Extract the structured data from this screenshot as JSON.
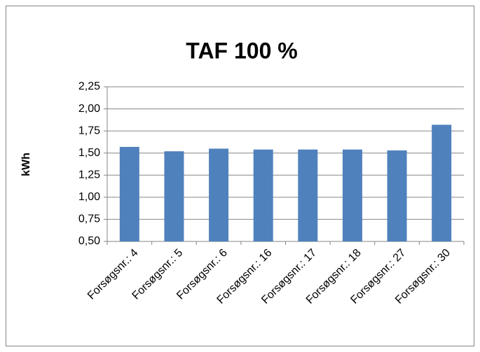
{
  "chart_data": {
    "type": "bar",
    "title": "TAF 100 %",
    "y_label": "kWh",
    "categories": [
      "Forsøgsnr.: 4",
      "Forsøgsnr.: 5",
      "Forsøgsnr.: 6",
      "Forsøgsnr.: 16",
      "Forsøgsnr.: 17",
      "Forsøgsnr.: 18",
      "Forsøgsnr.: 27",
      "Forsøgsnr.: 30"
    ],
    "values": [
      1.57,
      1.52,
      1.55,
      1.54,
      1.54,
      1.54,
      1.53,
      1.82
    ],
    "color": "#4f81bd",
    "ylim": [
      0.5,
      2.25
    ],
    "yticks": [
      {
        "value": 0.5,
        "label": "0,50"
      },
      {
        "value": 0.75,
        "label": "0,75"
      },
      {
        "value": 1.0,
        "label": "1,00"
      },
      {
        "value": 1.25,
        "label": "1,25"
      },
      {
        "value": 1.5,
        "label": "1,50"
      },
      {
        "value": 1.75,
        "label": "1,75"
      },
      {
        "value": 2.0,
        "label": "2,00"
      },
      {
        "value": 2.25,
        "label": "2,25"
      }
    ],
    "grid": true
  }
}
